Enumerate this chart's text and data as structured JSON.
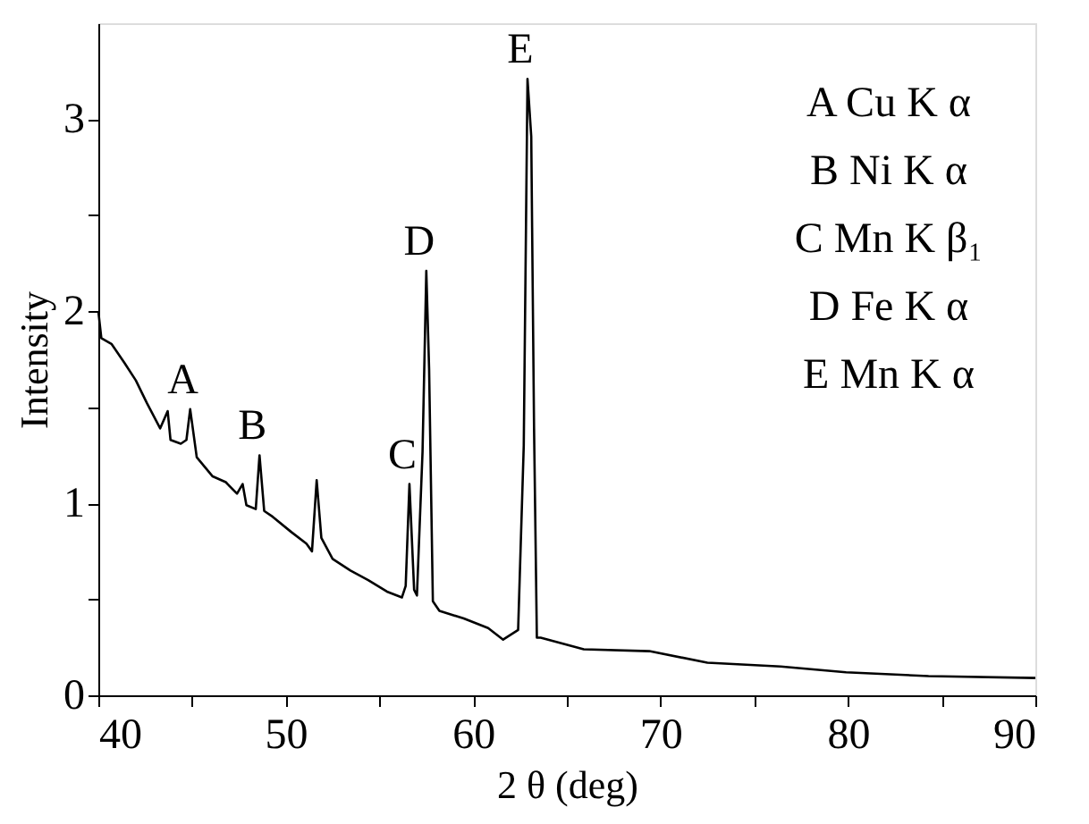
{
  "chart_data": {
    "type": "line",
    "xlabel": "2 θ (deg)",
    "ylabel": "Intensity",
    "x": [
      40,
      40.16,
      40.7,
      41.4,
      42.0,
      42.6,
      43.3,
      43.7,
      43.85,
      44.4,
      44.7,
      44.9,
      45.25,
      46.1,
      46.8,
      47.4,
      47.7,
      47.9,
      48.4,
      48.6,
      48.85,
      49.3,
      50.3,
      51.1,
      51.4,
      51.65,
      51.9,
      52.5,
      53.45,
      54.4,
      55.4,
      56.2,
      56.4,
      56.6,
      56.85,
      57.0,
      57.3,
      57.5,
      57.65,
      57.85,
      58.2,
      59.5,
      60.8,
      61.6,
      62.4,
      62.7,
      62.9,
      63.1,
      63.25,
      63.4,
      63.6,
      65.9,
      69.4,
      72.5,
      76.4,
      79.9,
      84.3,
      90
    ],
    "series": [
      {
        "color": "#000000",
        "values": [
          2.0,
          1.86,
          1.83,
          1.73,
          1.64,
          1.52,
          1.39,
          1.48,
          1.33,
          1.31,
          1.33,
          1.49,
          1.24,
          1.14,
          1.11,
          1.05,
          1.1,
          0.99,
          0.97,
          1.25,
          0.96,
          0.93,
          0.85,
          0.79,
          0.75,
          1.12,
          0.82,
          0.71,
          0.65,
          0.6,
          0.54,
          0.51,
          0.57,
          1.1,
          0.55,
          0.52,
          1.27,
          2.21,
          1.7,
          0.49,
          0.44,
          0.4,
          0.35,
          0.29,
          0.34,
          1.3,
          3.21,
          2.91,
          1.39,
          0.3,
          0.3,
          0.24,
          0.23,
          0.17,
          0.15,
          0.12,
          0.1,
          0.09
        ]
      }
    ],
    "xlim": [
      40,
      90
    ],
    "xticks": [
      40,
      {
        "value": 45,
        "label": null
      },
      50,
      {
        "value": 55,
        "label": null
      },
      60,
      {
        "value": 65,
        "label": null
      },
      70,
      {
        "value": 75,
        "label": null
      },
      80,
      {
        "value": 85,
        "label": null
      },
      90
    ],
    "ylim": [
      0,
      3.5
    ],
    "yticks": [
      0,
      {
        "value": 0.5,
        "label": null
      },
      1,
      {
        "value": 1.5,
        "label": null
      },
      2,
      {
        "value": 2.5,
        "label": null
      },
      3
    ],
    "grid": false,
    "marker": "none",
    "line_style": "solid",
    "annotations": [
      {
        "text": "A",
        "x": 44.9,
        "y": 1.49
      },
      {
        "text": "B",
        "x": 48.6,
        "y": 1.25
      },
      {
        "text": "C",
        "x": 56.6,
        "y": 1.1
      },
      {
        "text": "D",
        "x": 57.5,
        "y": 2.21
      },
      {
        "text": "E",
        "x": 62.9,
        "y": 3.21
      },
      "A Cu K α",
      "B Ni K α",
      "C Mn K β₁",
      "D Fe K α",
      "E Mn K α"
    ]
  }
}
